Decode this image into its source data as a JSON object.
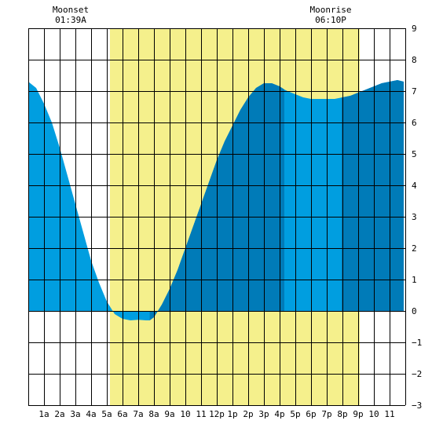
{
  "chart_data": {
    "type": "area",
    "title": "",
    "xlabel": "",
    "ylabel": "",
    "x_ticks": [
      "1a",
      "2a",
      "3a",
      "4a",
      "5a",
      "6a",
      "7a",
      "8a",
      "9a",
      "10",
      "11",
      "12p",
      "1p",
      "2p",
      "3p",
      "4p",
      "5p",
      "6p",
      "7p",
      "8p",
      "9p",
      "10",
      "11"
    ],
    "xlim_hours": [
      0,
      24
    ],
    "ylim": [
      -3,
      9
    ],
    "y_ticks": [
      "9",
      "8",
      "7",
      "6",
      "5",
      "4",
      "3",
      "2",
      "1",
      "0",
      "−1",
      "−2",
      "−3"
    ],
    "grid": true,
    "daylight_hours": [
      5.2,
      21.1
    ],
    "night_bands_dark": [
      [
        7.73,
        16.3
      ],
      [
        19.94,
        23.9
      ]
    ],
    "tide_series": {
      "x_hours": [
        0.0,
        0.5,
        1.0,
        1.5,
        2.0,
        2.5,
        3.0,
        3.5,
        4.0,
        4.5,
        5.0,
        5.5,
        6.0,
        6.5,
        7.0,
        7.5,
        7.73,
        8.0,
        8.5,
        9.0,
        9.5,
        10.0,
        10.5,
        11.0,
        11.5,
        12.0,
        12.5,
        13.0,
        13.5,
        14.0,
        14.5,
        15.0,
        15.5,
        16.0,
        16.3,
        16.5,
        17.0,
        17.5,
        18.0,
        18.5,
        19.0,
        19.5,
        20.0,
        20.5,
        21.0,
        21.5,
        22.0,
        22.5,
        23.0,
        23.5,
        23.9
      ],
      "heights_ft": [
        7.3,
        7.1,
        6.6,
        6.0,
        5.2,
        4.3,
        3.4,
        2.5,
        1.6,
        0.9,
        0.3,
        -0.1,
        -0.25,
        -0.3,
        -0.28,
        -0.3,
        -0.3,
        -0.2,
        0.2,
        0.7,
        1.3,
        2.0,
        2.7,
        3.4,
        4.1,
        4.8,
        5.4,
        5.9,
        6.4,
        6.8,
        7.1,
        7.25,
        7.25,
        7.15,
        7.05,
        7.0,
        6.9,
        6.8,
        6.75,
        6.75,
        6.75,
        6.75,
        6.8,
        6.85,
        6.95,
        7.05,
        7.15,
        7.25,
        7.3,
        7.35,
        7.3
      ]
    },
    "annotations": [
      {
        "label": "Moonset",
        "time": "01:39A"
      },
      {
        "label": "Moonrise",
        "time": "06:10P"
      }
    ],
    "colors": {
      "tide_light": "#009ee0",
      "tide_dark": "#007bb8",
      "daylight": "#f5f08c",
      "grid": "#000000",
      "background": "#ffffff"
    }
  }
}
